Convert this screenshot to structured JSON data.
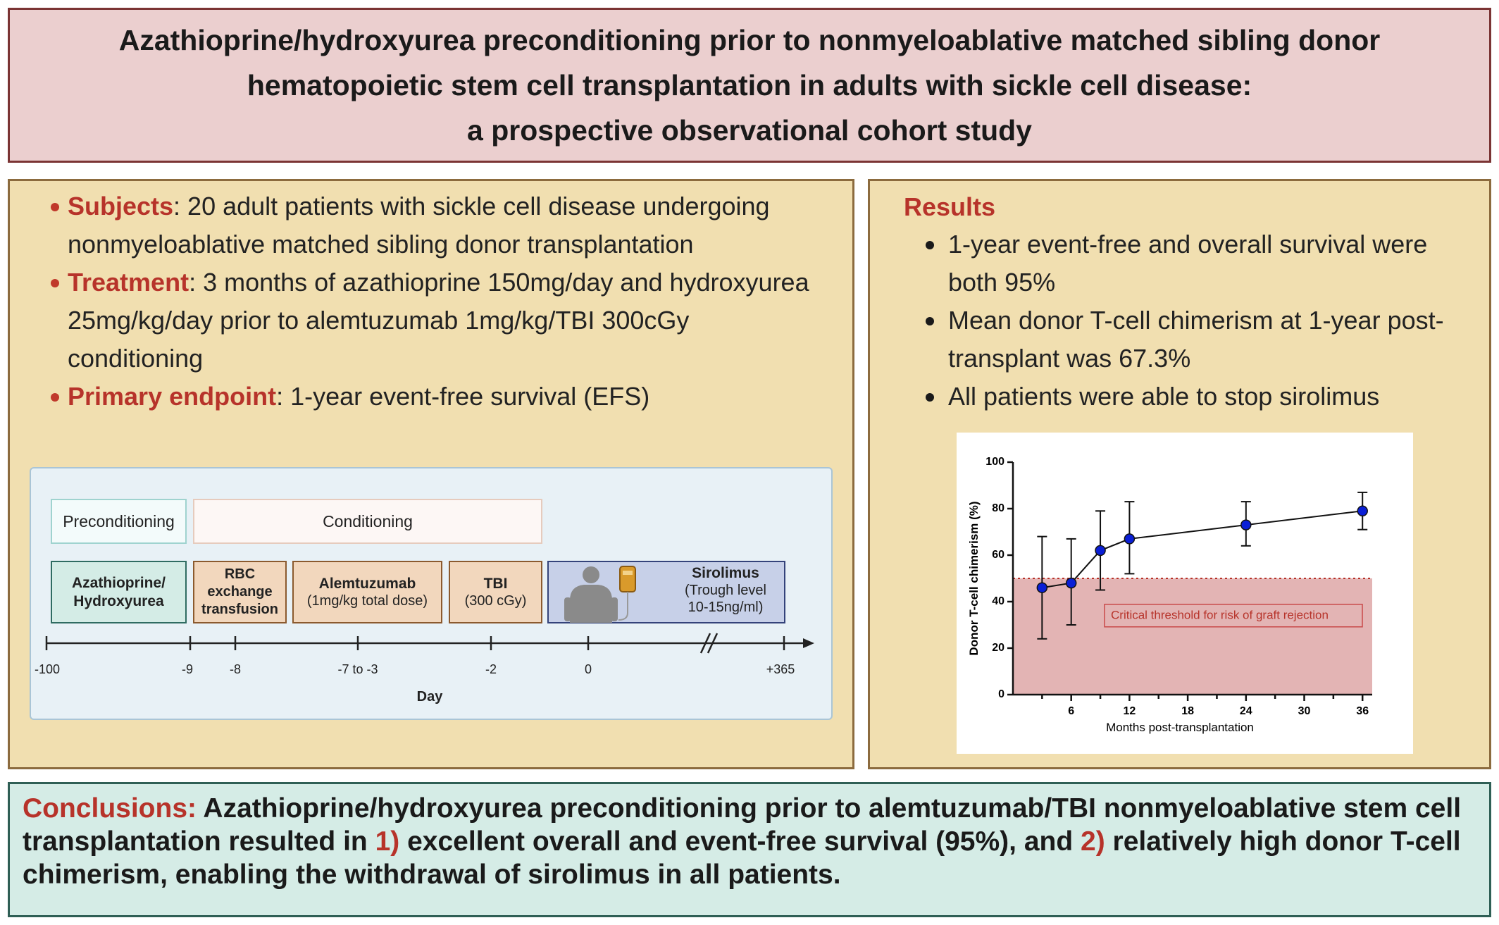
{
  "title": {
    "line1": "Azathioprine/hydroxyurea preconditioning prior to nonmyeloablative matched sibling donor",
    "line2": "hematopoietic stem cell transplantation in adults with sickle cell disease:",
    "line3": "a prospective observational cohort study"
  },
  "methods": {
    "subjects_label": "Subjects",
    "subjects_text": ": 20 adult patients with sickle cell disease undergoing nonmyeloablative matched sibling donor transplantation",
    "treatment_label": "Treatment",
    "treatment_text": ": 3 months of azathioprine 150mg/day and hydroxyurea 25mg/kg/day prior to alemtuzumab 1mg/kg/TBI 300cGy conditioning",
    "endpoint_label": "Primary endpoint",
    "endpoint_text": ": 1-year event-free survival (EFS)"
  },
  "timeline": {
    "preconditioning": "Preconditioning",
    "conditioning": "Conditioning",
    "aza_line1": "Azathioprine/",
    "aza_line2": "Hydroxyurea",
    "rbc_line1": "RBC",
    "rbc_line2": "exchange",
    "rbc_line3": "transfusion",
    "alem_title": "Alemtuzumab",
    "alem_detail": "(1mg/kg total dose)",
    "tbi_title": "TBI",
    "tbi_detail": "(300 cGy)",
    "siro_title": "Sirolimus",
    "siro_line2": "(Trough level",
    "siro_line3": "10-15ng/ml)",
    "ticks": [
      "-100",
      "-9",
      "-8",
      "-7 to -3",
      "-2",
      "0",
      "+365"
    ],
    "axis_label": "Day",
    "colors": {
      "preconditioning": "#d4ece6",
      "conditioning": "#f2d7bd",
      "sirolimus": "#c7d0e8"
    },
    "icons": [
      "patient-silhouette-icon",
      "iv-bag-icon",
      "axis-break-icon"
    ]
  },
  "results": {
    "heading": "Results",
    "items": [
      "1-year event-free and overall survival were both 95%",
      "Mean donor T-cell chimerism at 1-year post-transplant was 67.3%",
      "All patients were able to stop sirolimus"
    ]
  },
  "chart_data": {
    "type": "line",
    "title": "",
    "xlabel": "Months post-transplantation",
    "ylabel": "Donor T-cell chimerism (%)",
    "xlim": [
      0,
      37
    ],
    "ylim": [
      0,
      100
    ],
    "x_ticks": [
      6,
      12,
      18,
      24,
      30,
      36
    ],
    "y_ticks": [
      0,
      20,
      40,
      60,
      80,
      100
    ],
    "series": [
      {
        "x": [
          3,
          6,
          9,
          12,
          24,
          36
        ],
        "y": [
          46,
          48,
          62,
          67,
          73,
          79
        ],
        "err_low": [
          24,
          30,
          45,
          52,
          64,
          71
        ],
        "err_high": [
          68,
          67,
          79,
          83,
          83,
          87
        ],
        "color": "#0a1fd6"
      }
    ],
    "threshold": {
      "value": 50,
      "label": "Critical threshold for risk of graft rejection",
      "fill_color": "#e3b4b4",
      "line_color": "#b7332a"
    }
  },
  "conclusion": {
    "label": "Conclusions:",
    "part1": " Azathioprine/hydroxyurea preconditioning prior to alemtuzumab/TBI nonmyeloablative stem cell transplantation resulted in ",
    "num1": "1)",
    "part2": " excellent overall and event-free survival (95%), and ",
    "num2": "2)",
    "part3": " relatively high donor T-cell chimerism, enabling the withdrawal of sirolimus in all patients."
  }
}
